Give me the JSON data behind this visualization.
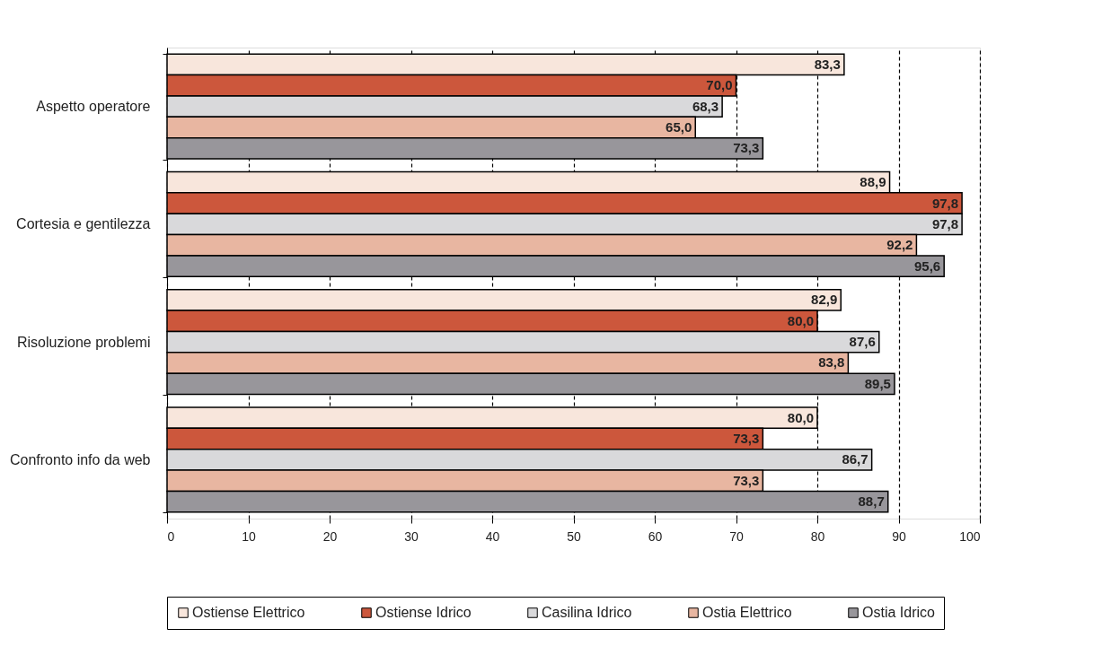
{
  "chart_data": {
    "type": "bar",
    "orientation": "horizontal",
    "categories": [
      "Aspetto operatore",
      "Cortesia e gentilezza",
      "Risoluzione problemi",
      "Confronto info da web"
    ],
    "series": [
      {
        "name": "Ostiense Elettrico",
        "color": "#f8e6dc",
        "values": [
          83.3,
          88.9,
          82.9,
          80.0
        ],
        "value_labels": [
          "83,3",
          "88,9",
          "82,9",
          "80,0"
        ]
      },
      {
        "name": "Ostiense Idrico",
        "color": "#cc573c",
        "values": [
          70.0,
          97.8,
          80.0,
          73.3
        ],
        "value_labels": [
          "70,0",
          "97,8",
          "80,0",
          "73,3"
        ]
      },
      {
        "name": "Casilina Idrico",
        "color": "#d9d9db",
        "values": [
          68.3,
          97.8,
          87.6,
          86.7
        ],
        "value_labels": [
          "68,3",
          "97,8",
          "87,6",
          "86,7"
        ]
      },
      {
        "name": "Ostia Elettrico",
        "color": "#e8b6a1",
        "values": [
          65.0,
          92.2,
          83.8,
          73.3
        ],
        "value_labels": [
          "65,0",
          "92,2",
          "83,8",
          "73,3"
        ]
      },
      {
        "name": "Ostia Idrico",
        "color": "#98969b",
        "values": [
          73.3,
          95.6,
          89.5,
          88.7
        ],
        "value_labels": [
          "73,3",
          "95,6",
          "89,5",
          "88,7"
        ]
      }
    ],
    "xlim": [
      0,
      100
    ],
    "xticks": [
      0,
      10,
      20,
      30,
      40,
      50,
      60,
      70,
      80,
      90,
      100
    ],
    "grid": "x",
    "legend": "bottom"
  }
}
